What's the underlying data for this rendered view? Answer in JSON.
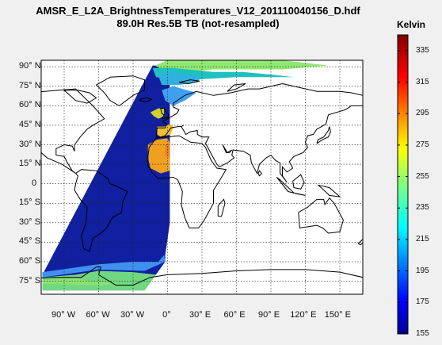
{
  "title": {
    "line1": "AMSR_E_L2A_BrightnessTemperatures_V12_201110040156_D.hdf",
    "line2": "89.0H Res.5B TB (not-resampled)"
  },
  "colorbar": {
    "label": "Kelvin",
    "ticks": [
      "335",
      "315",
      "295",
      "275",
      "255",
      "235",
      "215",
      "195",
      "175",
      "155"
    ],
    "min": 155,
    "max": 345,
    "colormap": "jet"
  },
  "map": {
    "projection": "plate carree",
    "grid": true,
    "lat_labels": [
      "90° N",
      "75° N",
      "60° N",
      "45° N",
      "30° N",
      "15° N",
      "0",
      "15° S",
      "30° S",
      "45° S",
      "60° S",
      "75° S"
    ],
    "lon_labels": [
      "90° W",
      "60° W",
      "30° W",
      "0°",
      "30° E",
      "60° E",
      "90° E",
      "120° E",
      "150° E"
    ],
    "lon_range": [
      -110,
      170
    ],
    "lat_range": [
      -85,
      95
    ],
    "colors": {
      "frame_bg": "#ffffff",
      "coastline": "#000000",
      "grid": "#222222",
      "swath_ocean": "#1020a0",
      "swath_land_warm": "#f0a020",
      "swath_ice": "#80e060"
    }
  }
}
